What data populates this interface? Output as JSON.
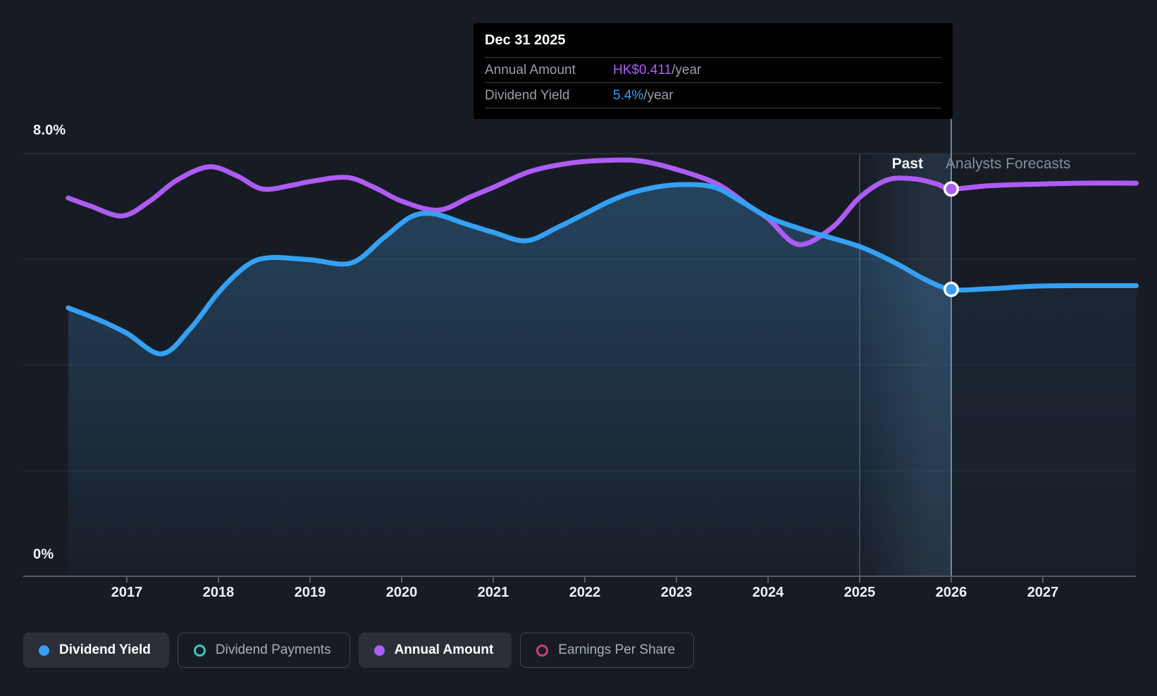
{
  "page": {
    "bg": "#171c24"
  },
  "colors": {
    "blue": "#35a1f4",
    "purple": "#ad5cf4",
    "teal": "#3fc7ba",
    "pink": "#c94078",
    "grid": "rgba(255,255,255,0.07)",
    "grid_top": "rgba(255,255,255,0.10)",
    "axis": "#565c66",
    "divider_line": "rgba(125,173,214,0.75)",
    "band_edge": "rgba(150,195,235,0.25)",
    "band_fill": "rgba(120,178,232,0.14)",
    "area_top": "rgba(66,148,212,0.34)",
    "area_bottom": "rgba(66,148,212,0.02)",
    "forecast_area_top": "rgba(66,148,212,0.11)",
    "forecast_area_bottom": "rgba(66,148,212,0.02)",
    "marker_ring": "#ffffff"
  },
  "y_axis": {
    "top_label": "8.0%",
    "zero_label": "0%",
    "max_pct": 8,
    "min_pct": 0,
    "gridline_step_pct": 2
  },
  "x_axis": {
    "years": [
      "2017",
      "2018",
      "2019",
      "2020",
      "2021",
      "2022",
      "2023",
      "2024",
      "2025",
      "2026",
      "2027"
    ]
  },
  "annotations": {
    "past": "Past",
    "forecast": "Analysts Forecasts"
  },
  "tooltip": {
    "title": "Dec 31 2025",
    "rows": [
      {
        "label": "Annual Amount",
        "value": "HK$0.411",
        "suffix": "/year",
        "color_key": "purple"
      },
      {
        "label": "Dividend Yield",
        "value": "5.4%",
        "suffix": "/year",
        "color_key": "blue"
      }
    ]
  },
  "legend": [
    {
      "label": "Dividend Yield",
      "icon": "dot",
      "color_key": "blue",
      "active": true
    },
    {
      "label": "Dividend Payments",
      "icon": "ring",
      "color_key": "teal",
      "active": false
    },
    {
      "label": "Annual Amount",
      "icon": "dot",
      "color_key": "purple",
      "active": true
    },
    {
      "label": "Earnings Per Share",
      "icon": "ring",
      "color_key": "pink",
      "active": false
    }
  ],
  "chart_data": {
    "type": "area",
    "x_unit": "year",
    "y_unit": "percent",
    "ylim": [
      0,
      8
    ],
    "x_ticks": [
      2017,
      2018,
      2019,
      2020,
      2021,
      2022,
      2023,
      2024,
      2025,
      2026,
      2027
    ],
    "grid": "horizontal only, every 2%",
    "legend_position": "bottom-left",
    "divider": {
      "year": 2026.0,
      "date_label": "Dec 31 2025",
      "past_label": "Past",
      "forecast_label": "Analysts Forecasts",
      "highlight_band_years": [
        2025.0,
        2026.0
      ]
    },
    "series": [
      {
        "name": "Dividend Yield",
        "type": "line+area",
        "color_key": "blue",
        "scale": "percent (left axis 0-8%)",
        "value_at_divider": "5.4%/year",
        "marker_at": [
          2026.0,
          5.43
        ],
        "points": [
          [
            2016.36,
            5.08
          ],
          [
            2016.7,
            4.85
          ],
          [
            2017.0,
            4.6
          ],
          [
            2017.38,
            4.21
          ],
          [
            2017.7,
            4.7
          ],
          [
            2018.0,
            5.37
          ],
          [
            2018.3,
            5.87
          ],
          [
            2018.55,
            6.03
          ],
          [
            2019.0,
            5.99
          ],
          [
            2019.45,
            5.93
          ],
          [
            2019.8,
            6.4
          ],
          [
            2020.1,
            6.8
          ],
          [
            2020.35,
            6.86
          ],
          [
            2020.7,
            6.67
          ],
          [
            2021.0,
            6.51
          ],
          [
            2021.36,
            6.35
          ],
          [
            2021.7,
            6.6
          ],
          [
            2022.0,
            6.86
          ],
          [
            2022.3,
            7.12
          ],
          [
            2022.6,
            7.3
          ],
          [
            2023.0,
            7.41
          ],
          [
            2023.4,
            7.37
          ],
          [
            2023.7,
            7.1
          ],
          [
            2024.0,
            6.8
          ],
          [
            2024.4,
            6.55
          ],
          [
            2025.0,
            6.24
          ],
          [
            2025.4,
            5.92
          ],
          [
            2025.7,
            5.63
          ],
          [
            2026.0,
            5.43
          ],
          [
            2026.4,
            5.44
          ],
          [
            2026.9,
            5.49
          ],
          [
            2027.4,
            5.5
          ],
          [
            2028.02,
            5.5
          ]
        ]
      },
      {
        "name": "Annual Amount",
        "type": "line",
        "color_key": "purple",
        "scale": "hidden HK$ scale; positions given as chart-percent equivalents",
        "value_at_divider": "HK$0.411/year",
        "marker_at": [
          2026.0,
          7.33
        ],
        "points": [
          [
            2016.36,
            7.16
          ],
          [
            2016.6,
            7.01
          ],
          [
            2016.95,
            6.82
          ],
          [
            2017.25,
            7.1
          ],
          [
            2017.55,
            7.5
          ],
          [
            2017.9,
            7.75
          ],
          [
            2018.2,
            7.58
          ],
          [
            2018.48,
            7.33
          ],
          [
            2018.8,
            7.4
          ],
          [
            2019.0,
            7.47
          ],
          [
            2019.4,
            7.55
          ],
          [
            2019.7,
            7.36
          ],
          [
            2020.0,
            7.1
          ],
          [
            2020.4,
            6.93
          ],
          [
            2020.75,
            7.18
          ],
          [
            2021.0,
            7.36
          ],
          [
            2021.4,
            7.66
          ],
          [
            2021.8,
            7.81
          ],
          [
            2022.2,
            7.87
          ],
          [
            2022.6,
            7.86
          ],
          [
            2023.0,
            7.7
          ],
          [
            2023.45,
            7.42
          ],
          [
            2023.8,
            7.0
          ],
          [
            2024.0,
            6.77
          ],
          [
            2024.33,
            6.28
          ],
          [
            2024.7,
            6.6
          ],
          [
            2025.0,
            7.17
          ],
          [
            2025.3,
            7.5
          ],
          [
            2025.6,
            7.52
          ],
          [
            2025.85,
            7.42
          ],
          [
            2026.0,
            7.33
          ],
          [
            2026.4,
            7.39
          ],
          [
            2026.9,
            7.42
          ],
          [
            2027.4,
            7.44
          ],
          [
            2028.02,
            7.44
          ]
        ]
      }
    ],
    "inactive_series": [
      "Dividend Payments",
      "Earnings Per Share"
    ]
  }
}
